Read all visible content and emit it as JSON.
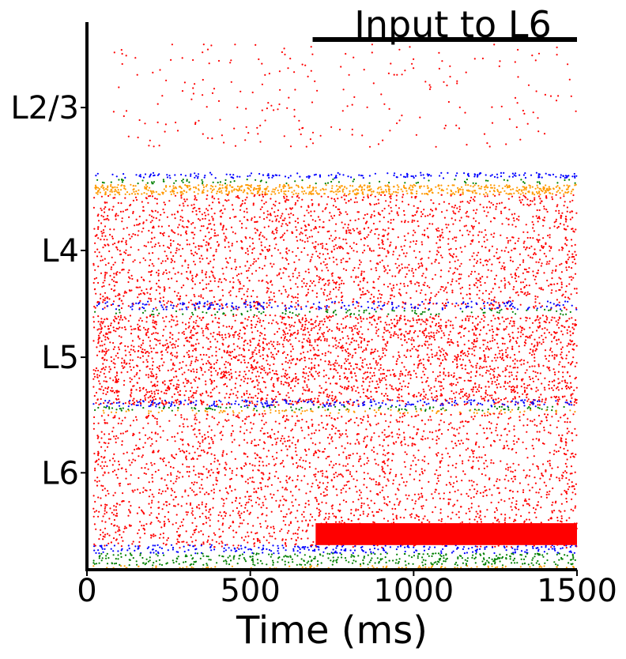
{
  "chart_data": {
    "type": "scatter",
    "title": "",
    "xlabel": "Time (ms)",
    "ylabel": "",
    "xlim": [
      0,
      1500
    ],
    "ylim": [
      0,
      1
    ],
    "x_ticks": [
      {
        "value": 0,
        "label": "0"
      },
      {
        "value": 500,
        "label": "500"
      },
      {
        "value": 1000,
        "label": "1000"
      },
      {
        "value": 1500,
        "label": "1500"
      }
    ],
    "y_ticks": [
      {
        "value": 0.844,
        "label": "L2/3"
      },
      {
        "value": 0.583,
        "label": "L4"
      },
      {
        "value": 0.388,
        "label": "L5"
      },
      {
        "value": 0.177,
        "label": "L6"
      }
    ],
    "annotation": {
      "text": "Input to L6",
      "bar_x": [
        715,
        1500
      ]
    },
    "stimulus_bar": {
      "x": [
        700,
        1500
      ],
      "y": [
        0.045,
        0.085
      ],
      "color": "#ff0000"
    },
    "colors": {
      "excitatory": "#ff0000",
      "pv": "#0000ff",
      "som": "#008000",
      "vip": "#ff9900",
      "axis": "#000000"
    },
    "bands": [
      {
        "layer": "L2/3",
        "color": "#ff0000",
        "y": [
          0.77,
          0.96
        ],
        "density": 0.12,
        "x_start": 80
      },
      {
        "layer": "L2/3",
        "color": "#0000ff",
        "y": [
          0.715,
          0.725
        ],
        "density": 0.55,
        "x_start": 20
      },
      {
        "layer": "L2/3",
        "color": "#008000",
        "y": [
          0.705,
          0.713
        ],
        "density": 0.25,
        "x_start": 20
      },
      {
        "layer": "L2/3",
        "color": "#ff9900",
        "y": [
          0.685,
          0.703
        ],
        "density": 1.6,
        "x_start": 20
      },
      {
        "layer": "L4",
        "color": "#ff0000",
        "y": [
          0.475,
          0.685
        ],
        "density": 1.05,
        "x_start": 20
      },
      {
        "layer": "L4",
        "color": "#0000ff",
        "y": [
          0.475,
          0.49
        ],
        "density": 0.55,
        "x_start": 20
      },
      {
        "layer": "L4",
        "color": "#008000",
        "y": [
          0.465,
          0.475
        ],
        "density": 0.3,
        "x_start": 20
      },
      {
        "layer": "L5",
        "color": "#ff0000",
        "y": [
          0.3,
          0.465
        ],
        "density": 1.55,
        "x_start": 20
      },
      {
        "layer": "L5",
        "color": "#0000ff",
        "y": [
          0.298,
          0.31
        ],
        "density": 0.6,
        "x_start": 20
      },
      {
        "layer": "L5",
        "color": "#008000",
        "y": [
          0.29,
          0.298
        ],
        "density": 0.35,
        "x_start": 20
      },
      {
        "layer": "L5",
        "color": "#ff9900",
        "y": [
          0.285,
          0.292
        ],
        "density": 0.3,
        "x_start": 20
      },
      {
        "layer": "L6",
        "color": "#ff0000",
        "y": [
          0.04,
          0.285
        ],
        "density": 0.95,
        "x_start": 20
      },
      {
        "layer": "L6",
        "color": "#0000ff",
        "y": [
          0.03,
          0.045
        ],
        "density": 0.7,
        "x_start": 20
      },
      {
        "layer": "L6",
        "color": "#008000",
        "y": [
          0.008,
          0.03
        ],
        "density": 0.9,
        "x_start": 20
      },
      {
        "layer": "L6",
        "color": "#ff9900",
        "y": [
          0.0,
          0.007
        ],
        "density": 0.35,
        "x_start": 20
      }
    ]
  }
}
